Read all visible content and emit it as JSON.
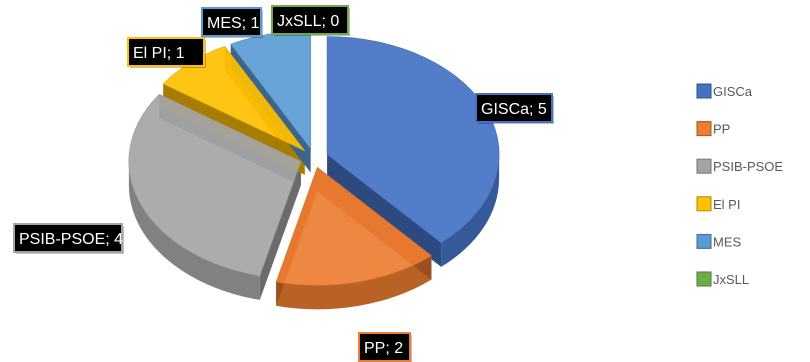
{
  "chart_data": {
    "type": "pie",
    "title": "",
    "categories": [
      "GISCa",
      "PP",
      "PSIB-PSOE",
      "El PI",
      "MES",
      "JxSLL"
    ],
    "values": [
      5,
      2,
      4,
      1,
      1,
      0
    ],
    "colors": {
      "GISCa": "#4472C4",
      "PP": "#ED7D31",
      "PSIB-PSOE": "#A5A5A5",
      "El PI": "#FFC000",
      "MES": "#5B9BD5",
      "JxSLL": "#70AD47"
    },
    "data_labels": [
      "GISCa; 5",
      "PP; 2",
      "PSIB-PSOE; 4",
      "El PI; 1",
      "MES; 1",
      "JxSLL; 0"
    ],
    "legend": {
      "position": "right",
      "entries": [
        "GISCa",
        "PP",
        "PSIB-PSOE",
        "El PI",
        "MES",
        "JxSLL"
      ]
    },
    "style": "3d-exploded"
  }
}
